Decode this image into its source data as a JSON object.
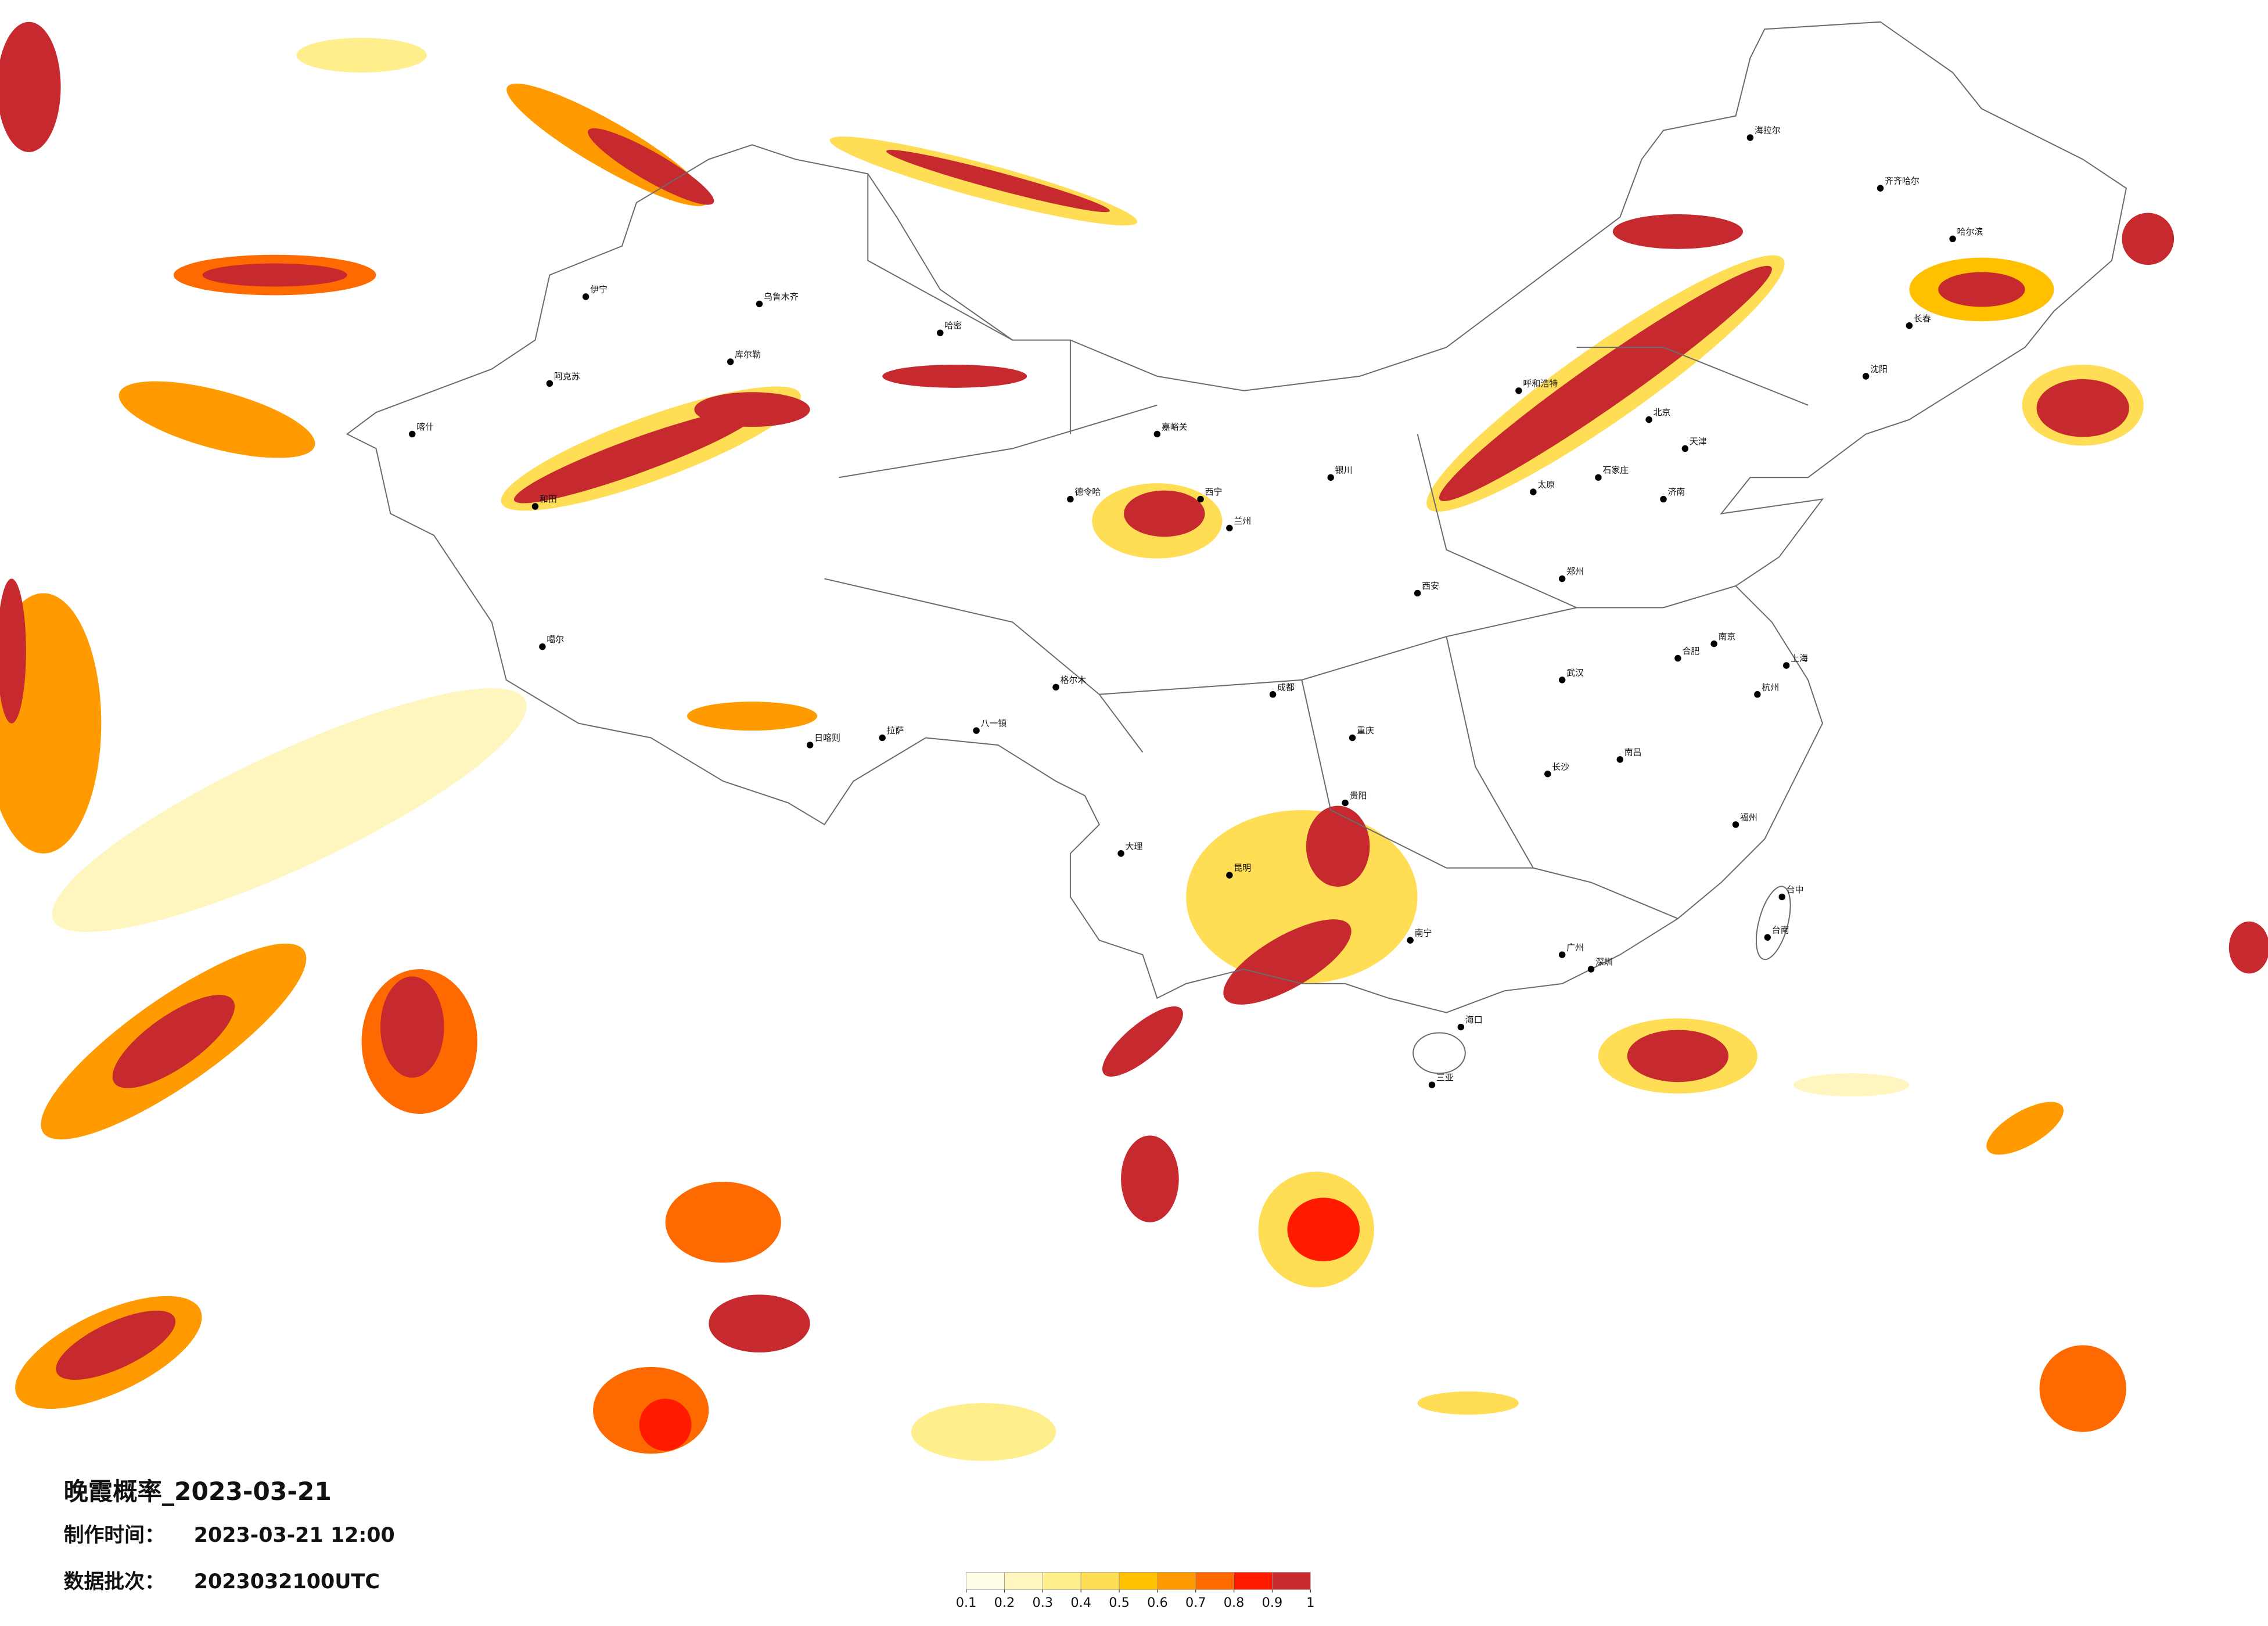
{
  "map": {
    "title": "晚霞概率_2023-03-21",
    "made_label": "制作时间：",
    "made_time": "2023-03-21 12:00",
    "batch_label": "数据批次：",
    "batch": "2023032100UTC",
    "colorbar": {
      "ticks": [
        0.1,
        0.2,
        0.3,
        0.4,
        0.5,
        0.6,
        0.7,
        0.8,
        0.9,
        1
      ],
      "colors": [
        "#fffde6",
        "#fff6bf",
        "#ffee8c",
        "#ffdd55",
        "#ffc000",
        "#ff9a00",
        "#ff6a00",
        "#ff1a00",
        "#c62a2f"
      ]
    },
    "cities": [
      "北京",
      "天津",
      "上海",
      "广州",
      "深圳",
      "重庆",
      "成都",
      "武汉",
      "西安",
      "拉萨",
      "乌鲁木齐",
      "兰州",
      "西宁",
      "银川",
      "呼和浩特",
      "哈尔滨",
      "长春",
      "沈阳",
      "昆明",
      "贵阳",
      "南宁",
      "海口",
      "福州",
      "南昌",
      "长沙",
      "杭州",
      "南京",
      "合肥",
      "郑州",
      "济南",
      "石家庄",
      "太原",
      "喀什",
      "和田",
      "伊宁",
      "阿克苏",
      "齐齐哈尔",
      "大理",
      "台中",
      "台南",
      "三亚",
      "日喀则",
      "八一镇",
      "格尔木",
      "海拉尔",
      "库尔勒",
      "哈密",
      "嘉峪关",
      "德令哈",
      "噶尔"
    ]
  }
}
